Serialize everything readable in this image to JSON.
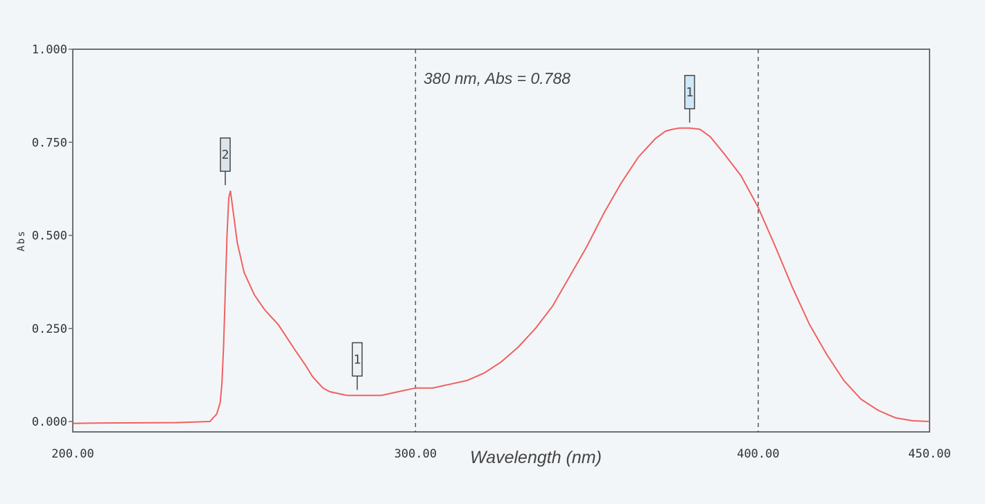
{
  "chart_data": {
    "type": "line",
    "title": "",
    "xlabel": "Wavelength (nm)",
    "ylabel": "Abs",
    "xlim": [
      200,
      450
    ],
    "ylim": [
      0,
      1
    ],
    "x_ticks": [
      "200.00",
      "300.00",
      "400.00",
      "450.00"
    ],
    "x_tick_values": [
      200,
      300,
      400,
      450
    ],
    "y_ticks": [
      "0.000",
      "0.250",
      "0.500",
      "0.750",
      "1.000"
    ],
    "y_tick_values": [
      0,
      0.25,
      0.5,
      0.75,
      1.0
    ],
    "grid": false,
    "cursor_lines": [
      300,
      400
    ],
    "annotation": "380 nm, Abs = 0.788",
    "line_color": "#f06060",
    "series": [
      {
        "x": [
          200,
          210,
          230,
          240,
          241,
          242,
          243,
          243.5,
          244,
          244.5,
          245,
          245.5,
          246,
          247,
          248,
          250,
          253,
          256,
          260,
          265,
          268,
          270,
          273,
          275,
          280,
          285,
          290,
          295,
          300,
          305,
          310,
          315,
          320,
          325,
          330,
          335,
          340,
          345,
          350,
          355,
          360,
          365,
          370,
          373,
          375,
          377,
          380,
          383,
          386,
          390,
          395,
          400,
          405,
          410,
          415,
          420,
          425,
          430,
          435,
          440,
          445,
          450
        ],
        "y": [
          -0.005,
          -0.004,
          -0.003,
          0.0,
          0.01,
          0.02,
          0.05,
          0.1,
          0.2,
          0.35,
          0.5,
          0.6,
          0.62,
          0.55,
          0.48,
          0.4,
          0.34,
          0.3,
          0.26,
          0.19,
          0.15,
          0.12,
          0.09,
          0.08,
          0.07,
          0.07,
          0.07,
          0.08,
          0.09,
          0.09,
          0.1,
          0.11,
          0.13,
          0.16,
          0.2,
          0.25,
          0.31,
          0.39,
          0.47,
          0.56,
          0.64,
          0.71,
          0.76,
          0.78,
          0.785,
          0.788,
          0.788,
          0.785,
          0.765,
          0.72,
          0.66,
          0.575,
          0.47,
          0.36,
          0.26,
          0.18,
          0.11,
          0.06,
          0.03,
          0.01,
          0.002,
          0.0
        ]
      }
    ],
    "peaks": [
      {
        "label": "1",
        "x": 380,
        "y": 0.788,
        "fill": "#cde8f8"
      },
      {
        "label": "2",
        "x": 244.5,
        "y": 0.62,
        "fill": "#dde5ec"
      },
      {
        "label": "1",
        "x": 283,
        "y": 0.07,
        "fill": "#eef1f4"
      }
    ]
  }
}
